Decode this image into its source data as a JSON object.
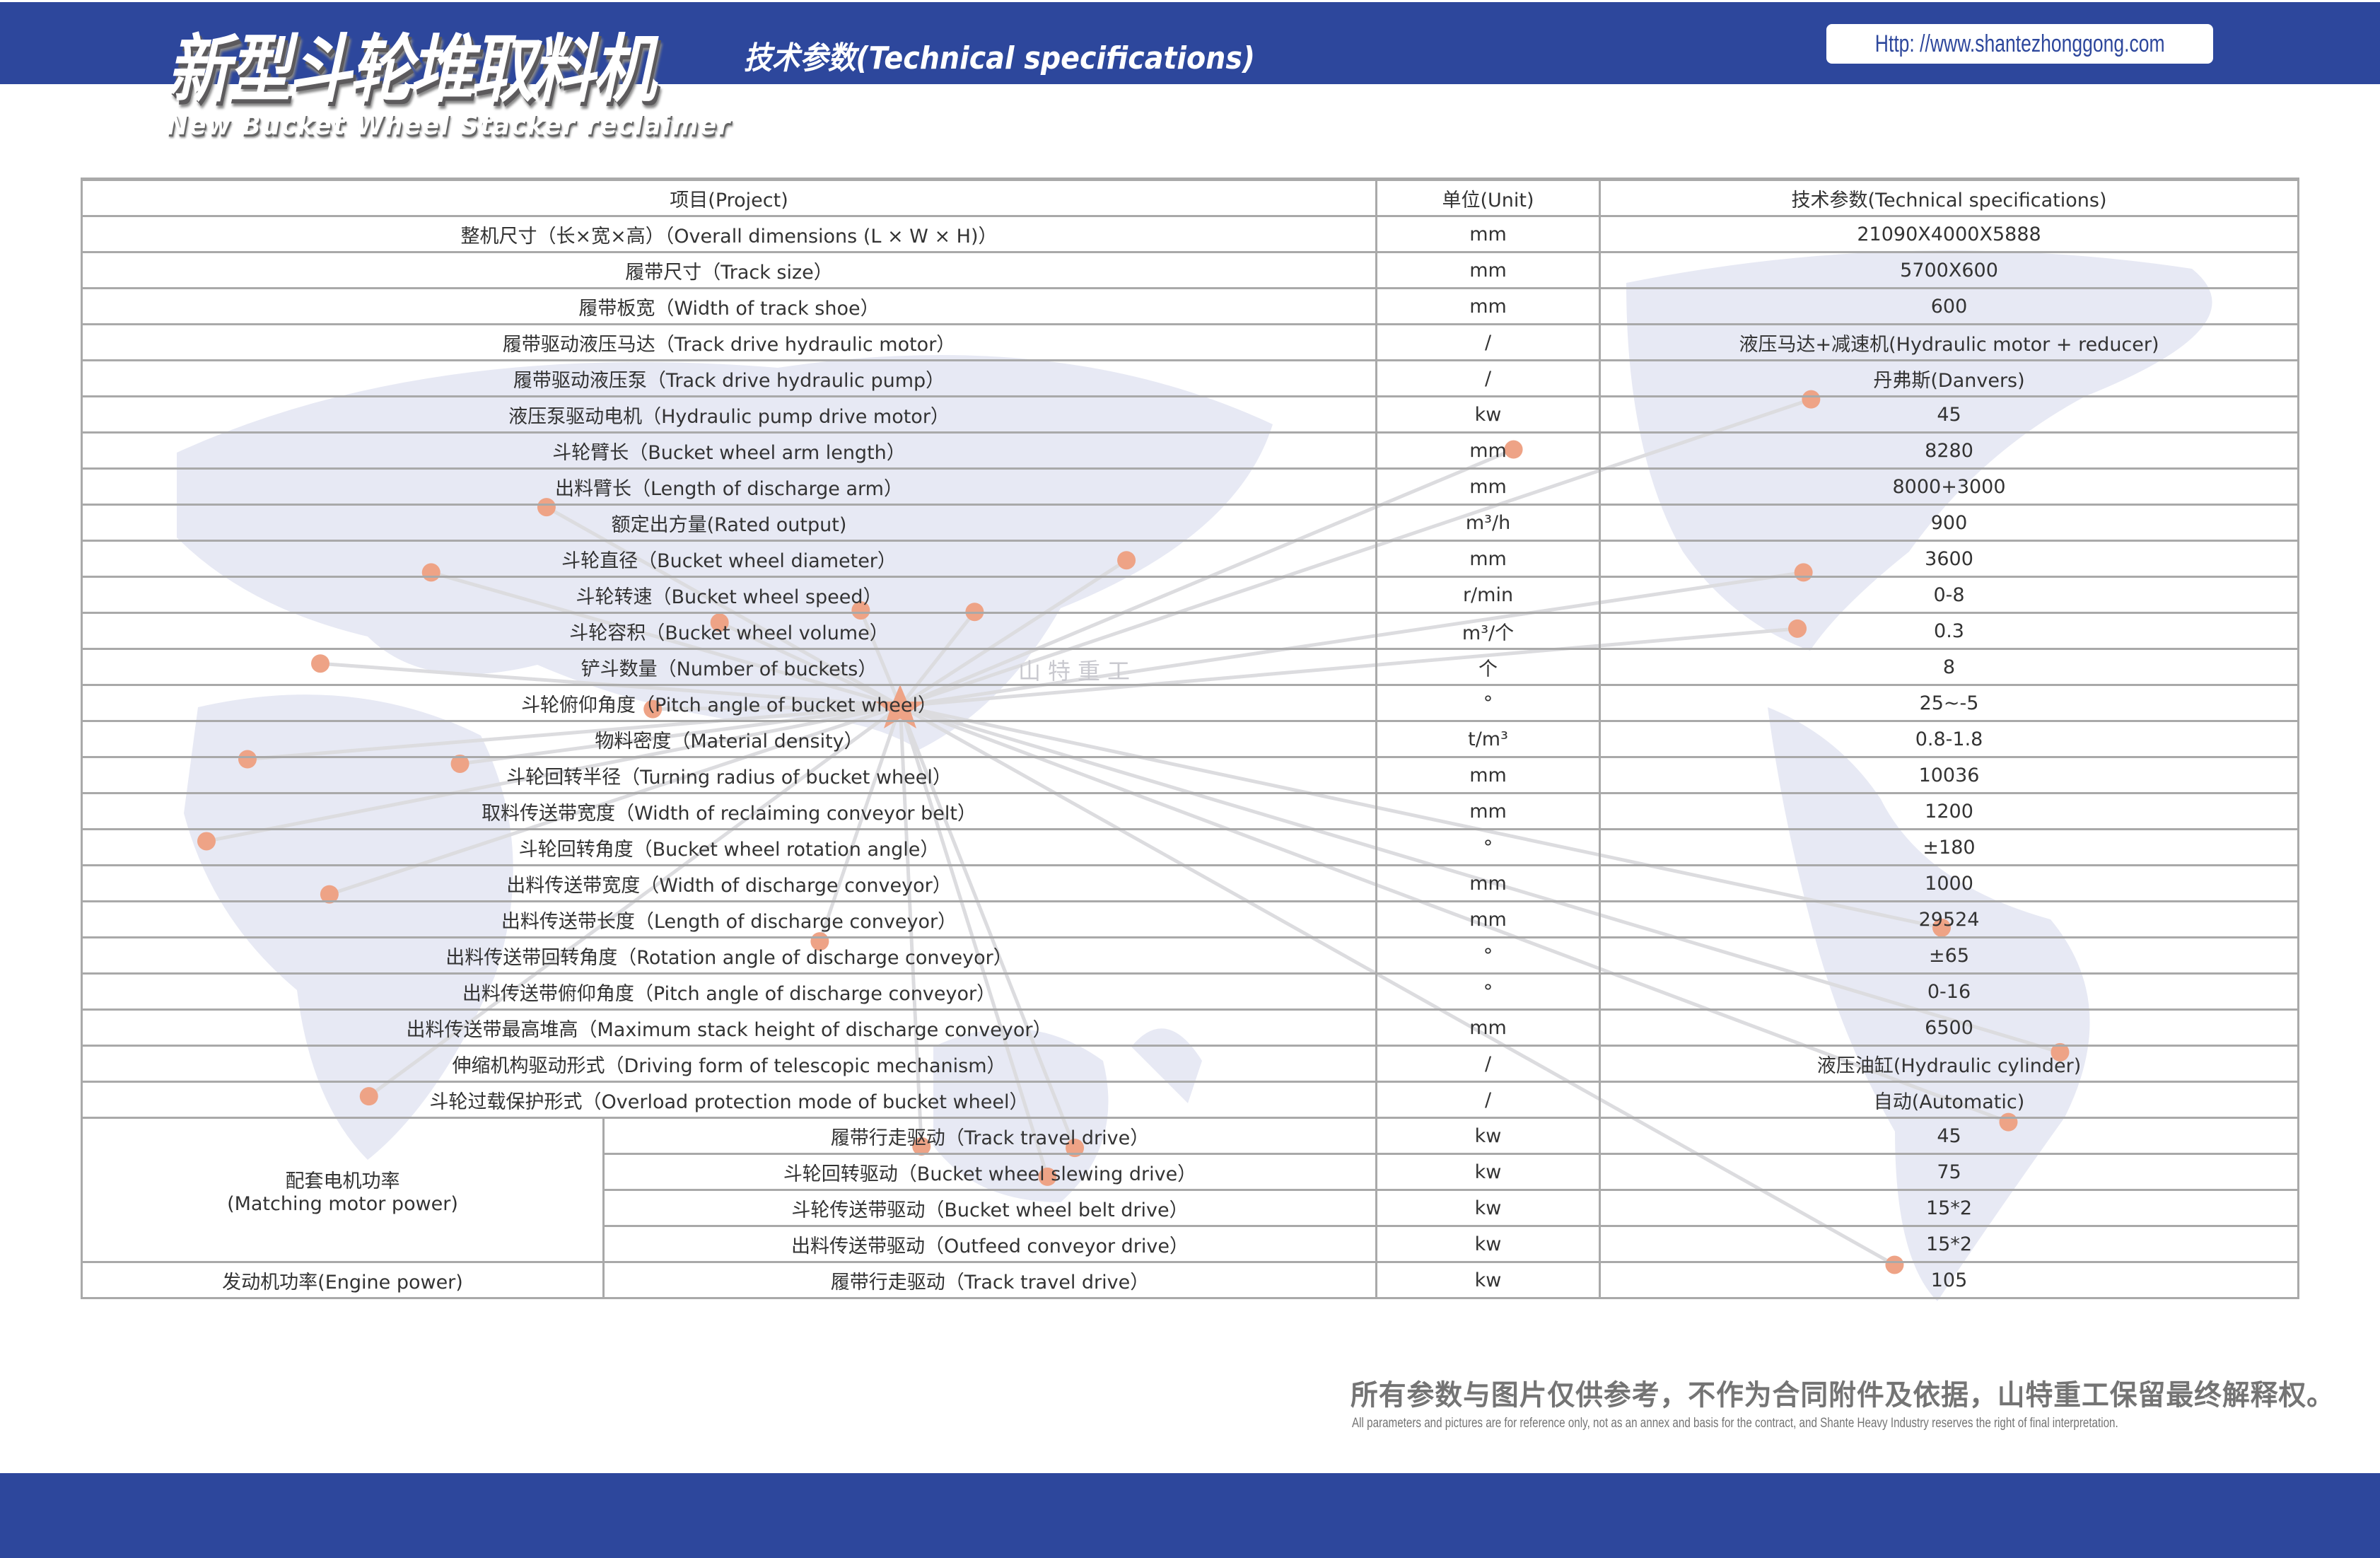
{
  "header": {
    "title_cn": "新型斗轮堆取料机",
    "title_en": "New Bucket Wheel Stacker reclaimer",
    "subtitle": "技术参数(Technical specifications)",
    "url": "Http: //www.shantezhonggong.com",
    "brand_color": "#2d479c"
  },
  "watermark": "山特重工",
  "table": {
    "headers": [
      "项目(Project)",
      "单位(Unit)",
      "技术参数(Technical specifications)"
    ],
    "rows": [
      {
        "item": "整机尺寸（长×宽×高）（Overall dimensions (L × W × H)）",
        "unit": "mm",
        "value": "21090X4000X5888"
      },
      {
        "item": "履带尺寸（Track size）",
        "unit": "mm",
        "value": "5700X600"
      },
      {
        "item": "履带板宽（Width of track shoe）",
        "unit": "mm",
        "value": "600"
      },
      {
        "item": "履带驱动液压马达（Track drive hydraulic motor）",
        "unit": "/",
        "value": "液压马达+减速机(Hydraulic motor + reducer)"
      },
      {
        "item": "履带驱动液压泵（Track drive hydraulic pump）",
        "unit": "/",
        "value": "丹弗斯(Danvers)"
      },
      {
        "item": "液压泵驱动电机（Hydraulic pump drive motor）",
        "unit": "kw",
        "value": "45"
      },
      {
        "item": "斗轮臂长（Bucket wheel arm length）",
        "unit": "mm",
        "value": "8280"
      },
      {
        "item": "出料臂长（Length of discharge arm）",
        "unit": "mm",
        "value": "8000+3000"
      },
      {
        "item": "额定出方量(Rated output)",
        "unit": "m³/h",
        "value": "900"
      },
      {
        "item": "斗轮直径（Bucket wheel diameter）",
        "unit": "mm",
        "value": "3600"
      },
      {
        "item": "斗轮转速（Bucket wheel speed）",
        "unit": "r/min",
        "value": "0-8"
      },
      {
        "item": "斗轮容积（Bucket wheel volume）",
        "unit": "m³/个",
        "value": "0.3"
      },
      {
        "item": "铲斗数量（Number of buckets）",
        "unit": "个",
        "value": "8"
      },
      {
        "item": "斗轮俯仰角度（Pitch angle of bucket wheel）",
        "unit": "°",
        "value": "25~-5"
      },
      {
        "item": "物料密度（Material density）",
        "unit": "t/m³",
        "value": "0.8-1.8"
      },
      {
        "item": "斗轮回转半径（Turning radius of bucket wheel）",
        "unit": "mm",
        "value": "10036"
      },
      {
        "item": "取料传送带宽度（Width of reclaiming conveyor belt）",
        "unit": "mm",
        "value": "1200"
      },
      {
        "item": "斗轮回转角度（Bucket wheel rotation angle）",
        "unit": "°",
        "value": "±180"
      },
      {
        "item": "出料传送带宽度（Width of discharge conveyor）",
        "unit": "mm",
        "value": "1000"
      },
      {
        "item": "出料传送带长度（Length of discharge conveyor）",
        "unit": "mm",
        "value": "29524"
      },
      {
        "item": "出料传送带回转角度（Rotation angle of discharge conveyor）",
        "unit": "°",
        "value": "±65"
      },
      {
        "item": "出料传送带俯仰角度（Pitch angle of discharge conveyor）",
        "unit": "°",
        "value": "0-16"
      },
      {
        "item": "出料传送带最高堆高（Maximum stack height of discharge conveyor）",
        "unit": "mm",
        "value": "6500"
      },
      {
        "item": "伸缩机构驱动形式（Driving form of telescopic mechanism）",
        "unit": "/",
        "value": "液压油缸(Hydraulic cylinder)"
      },
      {
        "item": "斗轮过载保护形式（Overload protection mode of bucket wheel）",
        "unit": "/",
        "value": "自动(Automatic)"
      }
    ],
    "motor_group": {
      "label_cn": "配套电机功率",
      "label_en": "(Matching motor power)",
      "rows": [
        {
          "item": "履带行走驱动（Track travel drive）",
          "unit": "kw",
          "value": "45"
        },
        {
          "item": "斗轮回转驱动（Bucket wheel slewing drive）",
          "unit": "kw",
          "value": "75"
        },
        {
          "item": "斗轮传送带驱动（Bucket wheel belt drive）",
          "unit": "kw",
          "value": "15*2"
        },
        {
          "item": "出料传送带驱动（Outfeed conveyor drive）",
          "unit": "kw",
          "value": "15*2"
        }
      ]
    },
    "engine": {
      "label": "发动机功率(Engine power)",
      "item": "履带行走驱动（Track travel drive）",
      "unit": "kw",
      "value": "105"
    }
  },
  "footer": {
    "disclaimer_cn": "所有参数与图片仅供参考，不作为合同附件及依据，山特重工保留最终解释权。",
    "disclaimer_en": "All parameters and pictures are for reference only, not as an annex and basis for the contract, and Shante Heavy Industry reserves the right of final interpretation."
  }
}
